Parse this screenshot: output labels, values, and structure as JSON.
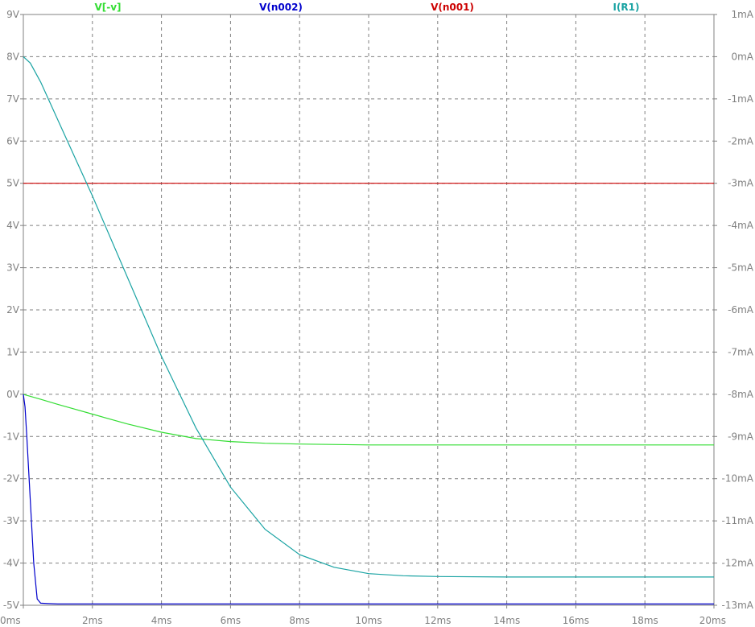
{
  "chart_data": {
    "type": "line",
    "x": {
      "ticks": [
        "0ms",
        "2ms",
        "4ms",
        "6ms",
        "8ms",
        "10ms",
        "12ms",
        "14ms",
        "16ms",
        "18ms",
        "20ms"
      ],
      "range_ms": [
        0,
        20
      ]
    },
    "y_left": {
      "ticks": [
        "9V",
        "8V",
        "7V",
        "6V",
        "5V",
        "4V",
        "3V",
        "2V",
        "1V",
        "0V",
        "-1V",
        "-2V",
        "-3V",
        "-4V",
        "-5V"
      ],
      "range": [
        -5,
        9
      ]
    },
    "y_right": {
      "ticks": [
        "1mA",
        "0mA",
        "-1mA",
        "-2mA",
        "-3mA",
        "-4mA",
        "-5mA",
        "-6mA",
        "-7mA",
        "-8mA",
        "-9mA",
        "-10mA",
        "-11mA",
        "-12mA",
        "-13mA"
      ],
      "range": [
        -13,
        1
      ]
    },
    "grid": true,
    "series": [
      {
        "name": "V[-v]",
        "color": "#33dd33",
        "axis": "left",
        "x": [
          0,
          0.5,
          1,
          2,
          3,
          4,
          5,
          6,
          7,
          8,
          10,
          12,
          14,
          16,
          18,
          20
        ],
        "y": [
          0,
          -0.12,
          -0.24,
          -0.47,
          -0.7,
          -0.9,
          -1.05,
          -1.12,
          -1.16,
          -1.18,
          -1.2,
          -1.2,
          -1.2,
          -1.2,
          -1.2,
          -1.2
        ]
      },
      {
        "name": "V(n002)",
        "color": "#0000cc",
        "axis": "left",
        "x": [
          0,
          0.05,
          0.1,
          0.2,
          0.3,
          0.4,
          0.5,
          0.7,
          1,
          5,
          10,
          15,
          20
        ],
        "y": [
          0,
          -0.3,
          -1,
          -2.5,
          -4,
          -4.85,
          -4.95,
          -4.96,
          -4.97,
          -4.97,
          -4.97,
          -4.97,
          -4.97
        ]
      },
      {
        "name": "V(n001)",
        "color": "#cc0000",
        "axis": "left",
        "x": [
          0,
          20
        ],
        "y": [
          5,
          5
        ]
      },
      {
        "name": "I(R1)",
        "color": "#1aa3a3",
        "axis": "right",
        "x": [
          0,
          0.2,
          0.5,
          1,
          1.5,
          2,
          3,
          4,
          5,
          6,
          7,
          8,
          9,
          10,
          11,
          12,
          14,
          16,
          18,
          20
        ],
        "y": [
          0,
          -0.15,
          -0.6,
          -1.5,
          -2.4,
          -3.3,
          -5.2,
          -7.1,
          -8.8,
          -10.2,
          -11.2,
          -11.8,
          -12.1,
          -12.25,
          -12.3,
          -12.32,
          -12.33,
          -12.33,
          -12.33,
          -12.33
        ]
      }
    ]
  }
}
